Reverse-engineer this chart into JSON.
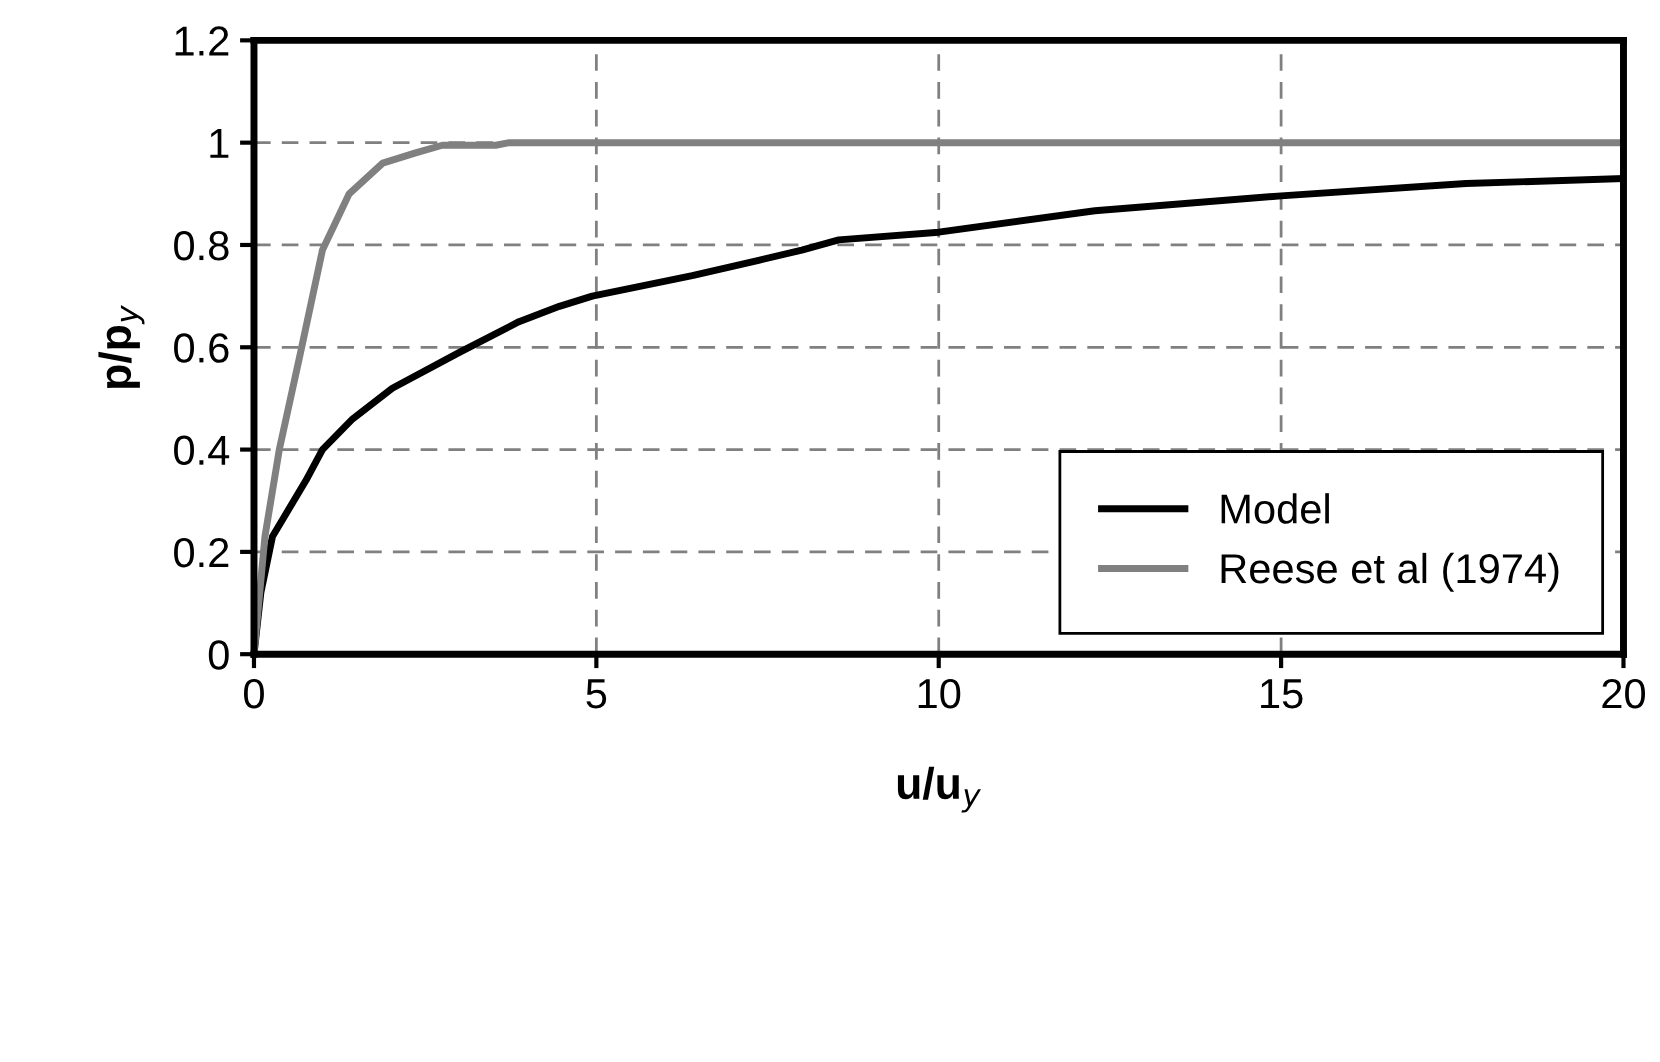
{
  "chart_data": {
    "type": "line",
    "xlabel": "u/u$_{y}$",
    "ylabel": "p/p$_{y}$",
    "xlim": [
      0,
      20
    ],
    "ylim": [
      0,
      1.2
    ],
    "xticks": [
      0,
      5,
      10,
      15,
      20
    ],
    "yticks": [
      0,
      0.2,
      0.4,
      0.6,
      0.8,
      1,
      1.2
    ],
    "grid": true,
    "legend": "bottom right",
    "line_style": "solid",
    "marker": "none",
    "series": [
      {
        "name": "Model",
        "color": "#000000",
        "x": [
          0,
          0.1,
          0.27,
          0.76,
          1.0,
          1.44,
          2.02,
          3.0,
          3.87,
          4.46,
          4.94,
          6.4,
          7.37,
          8.0,
          8.54,
          10,
          12.28,
          15,
          17.7,
          20
        ],
        "values": [
          0,
          0.12,
          0.23,
          0.34,
          0.4,
          0.46,
          0.52,
          0.59,
          0.65,
          0.68,
          0.7,
          0.74,
          0.77,
          0.79,
          0.81,
          0.825,
          0.867,
          0.896,
          0.92,
          0.93
        ]
      },
      {
        "name": "Reese et al (1974)",
        "color": "#808080",
        "x": [
          0,
          0.16,
          0.37,
          0.68,
          1.0,
          1.39,
          1.88,
          2.36,
          2.75,
          3.53,
          3.73,
          20
        ],
        "values": [
          0,
          0.23,
          0.4,
          0.59,
          0.79,
          0.9,
          0.96,
          0.98,
          0.995,
          0.995,
          1,
          1
        ]
      }
    ]
  }
}
